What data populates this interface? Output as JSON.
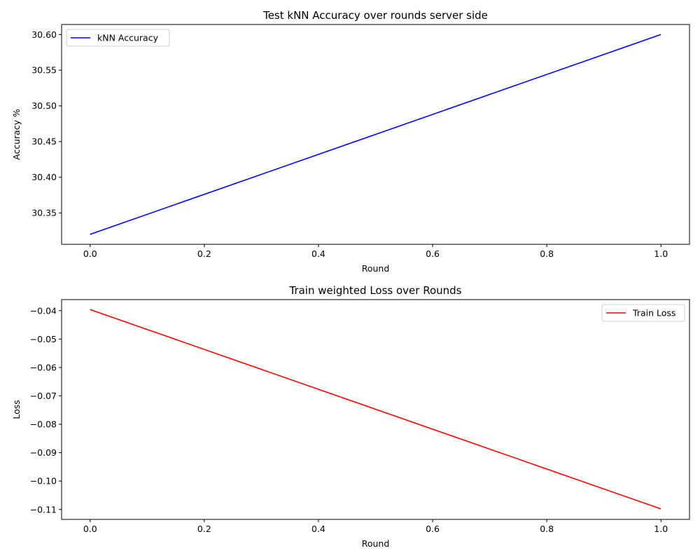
{
  "chart_data": [
    {
      "type": "line",
      "title": "Test kNN Accuracy over rounds server side",
      "xlabel": "Round",
      "ylabel": "Accuracy %",
      "xlim": [
        -0.05,
        1.05
      ],
      "ylim": [
        30.306,
        30.614
      ],
      "xticks": [
        0.0,
        0.2,
        0.4,
        0.6,
        0.8,
        1.0
      ],
      "xtick_labels": [
        "0.0",
        "0.2",
        "0.4",
        "0.6",
        "0.8",
        "1.0"
      ],
      "yticks": [
        30.35,
        30.4,
        30.45,
        30.5,
        30.55,
        30.6
      ],
      "ytick_labels": [
        "30.35",
        "30.40",
        "30.45",
        "30.50",
        "30.55",
        "30.60"
      ],
      "legend_position": "upper-left",
      "grid": false,
      "series": [
        {
          "name": "kNN Accuracy",
          "color": "#0000ff",
          "x": [
            0,
            1
          ],
          "y": [
            30.32,
            30.6
          ]
        }
      ]
    },
    {
      "type": "line",
      "title": "Train weighted Loss over Rounds",
      "xlabel": "Round",
      "ylabel": "Loss",
      "xlim": [
        -0.05,
        1.05
      ],
      "ylim": [
        -0.1135,
        -0.0361
      ],
      "xticks": [
        0.0,
        0.2,
        0.4,
        0.6,
        0.8,
        1.0
      ],
      "xtick_labels": [
        "0.0",
        "0.2",
        "0.4",
        "0.6",
        "0.8",
        "1.0"
      ],
      "yticks": [
        -0.04,
        -0.05,
        -0.06,
        -0.07,
        -0.08,
        -0.09,
        -0.1,
        -0.11
      ],
      "ytick_labels": [
        "−0.04",
        "−0.05",
        "−0.06",
        "−0.07",
        "−0.08",
        "−0.09",
        "−0.10",
        "−0.11"
      ],
      "legend_position": "upper-right",
      "grid": false,
      "series": [
        {
          "name": "Train Loss",
          "color": "#ff0000",
          "x": [
            0,
            1
          ],
          "y": [
            -0.0396,
            -0.1098
          ]
        }
      ]
    }
  ]
}
